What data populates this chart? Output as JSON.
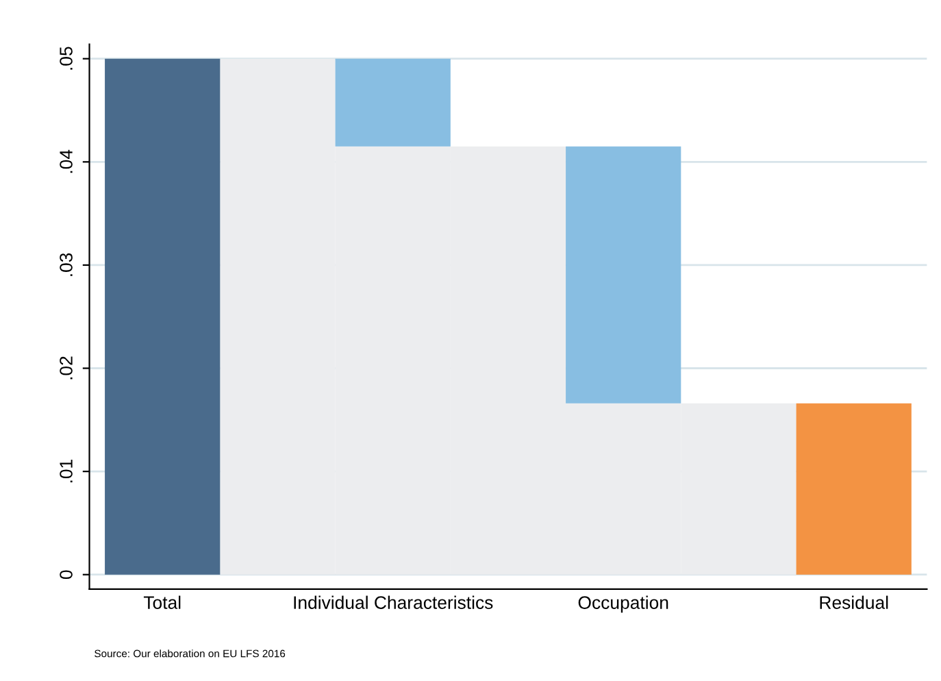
{
  "chart_data": {
    "type": "bar",
    "stacked": true,
    "categories": [
      "Total",
      null,
      "Individual Characteristics",
      null,
      "Occupation",
      null,
      "Residual"
    ],
    "series": [
      {
        "color": "#ecedef",
        "values": [
          null,
          0.05,
          0.0415,
          0.0415,
          0.0166,
          0.0166,
          null
        ]
      },
      {
        "colors": [
          "#4a6b8c",
          null,
          "#88bee2",
          null,
          "#88bee2",
          null,
          "#f39343"
        ],
        "values": [
          0.05,
          null,
          0.0085,
          null,
          0.0249,
          null,
          0.0166
        ]
      }
    ],
    "ylim": [
      -0.0014,
      0.0514
    ],
    "yticks": [
      {
        "value": 0,
        "label": "0"
      },
      {
        "value": 0.01,
        "label": ".01"
      },
      {
        "value": 0.02,
        "label": ".02"
      },
      {
        "value": 0.03,
        "label": ".03"
      },
      {
        "value": 0.04,
        "label": ".04"
      },
      {
        "value": 0.05,
        "label": ".05"
      }
    ],
    "grid": "y",
    "annotations": [
      "Source: Our elaboration on EU LFS 2016"
    ]
  }
}
